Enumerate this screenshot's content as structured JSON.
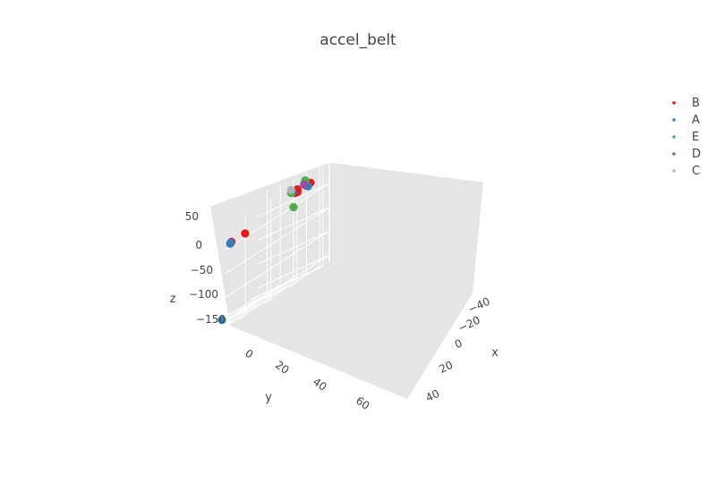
{
  "chart_data": {
    "type": "scatter3d",
    "title": "accel_belt",
    "xlabel": "x",
    "ylabel": "y",
    "zlabel": "z",
    "x_ticks": [
      "−40",
      "−20",
      "0",
      "20",
      "40"
    ],
    "y_ticks": [
      "0",
      "20",
      "40",
      "60"
    ],
    "z_ticks": [
      "50",
      "0",
      "−50",
      "−100",
      "−150"
    ],
    "legend_placement": "top-right",
    "series": [
      {
        "name": "B",
        "color": "#e41a1c",
        "points": [
          [
            -42,
            6,
            22
          ],
          [
            -36,
            10,
            20
          ],
          [
            -40,
            14,
            22
          ],
          [
            -12,
            -2,
            20
          ],
          [
            -36,
            0,
            22
          ],
          [
            -45,
            55,
            5
          ],
          [
            -34,
            60,
            3
          ]
        ]
      },
      {
        "name": "A",
        "color": "#377eb8",
        "points": [
          [
            -47,
            10,
            32
          ],
          [
            -44,
            6,
            20
          ],
          [
            -36,
            14,
            26
          ],
          [
            -38,
            63,
            2
          ],
          [
            -25,
            56,
            0
          ],
          [
            36,
            32,
            -165
          ]
        ]
      },
      {
        "name": "E",
        "color": "#4daf4a",
        "points": [
          [
            -20,
            -4,
            30
          ],
          [
            -30,
            12,
            25
          ],
          [
            -22,
            6,
            -10
          ]
        ]
      },
      {
        "name": "D",
        "color": "#984ea3",
        "points": [
          [
            -42,
            8,
            28
          ]
        ]
      },
      {
        "name": "C",
        "color": "#b3b3b3",
        "points": [
          [
            -50,
            22,
            36
          ]
        ]
      }
    ]
  }
}
